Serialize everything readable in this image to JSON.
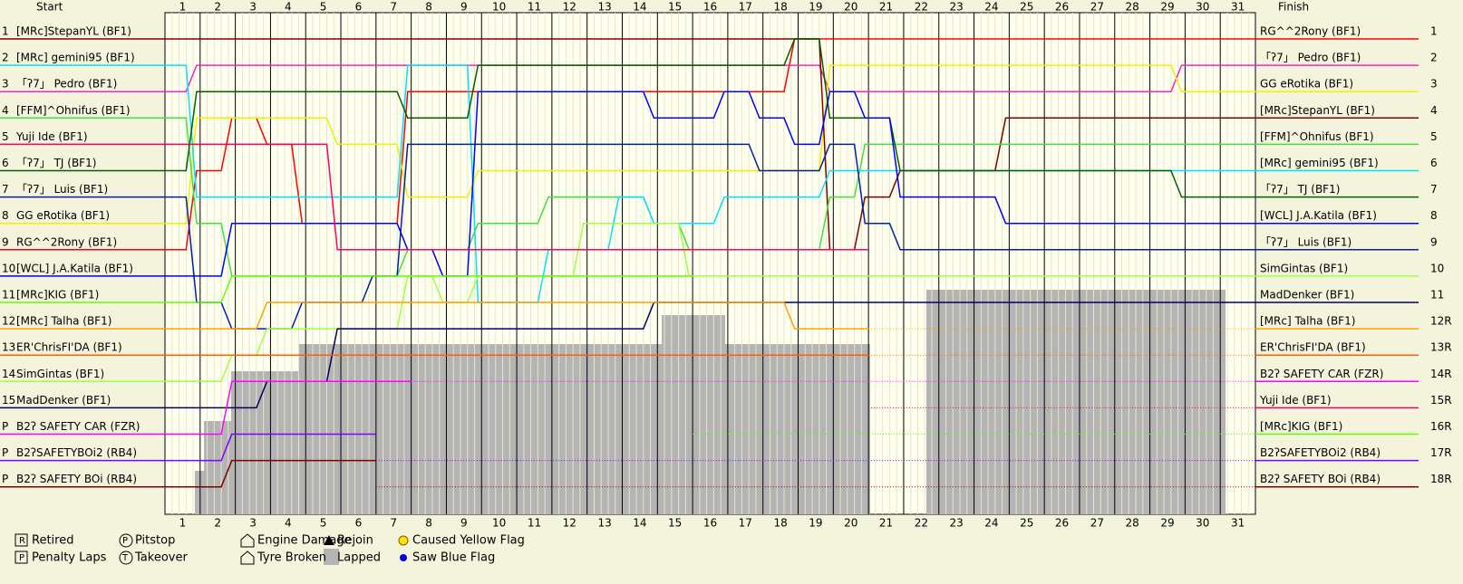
{
  "chart_data": {
    "type": "line",
    "start_title": "Start",
    "finish_title": "Finish",
    "x": [
      1,
      2,
      3,
      4,
      5,
      6,
      7,
      8,
      9,
      10,
      11,
      12,
      13,
      14,
      15,
      16,
      17,
      18,
      19,
      20,
      21,
      22,
      23,
      24,
      25,
      26,
      27,
      28,
      29,
      30,
      31
    ],
    "start_positions": [
      "1",
      "2",
      "3",
      "4",
      "5",
      "6",
      "7",
      "8",
      "9",
      "10",
      "11",
      "12",
      "13",
      "14",
      "15",
      "P",
      "P",
      "P"
    ],
    "start_labels": [
      "[MRc]StepanYL (BF1)",
      "[MRc] gemini95 (BF1)",
      "「ʔ7」 Pedro (BF1)",
      "[FFM]^Ohnifus (BF1)",
      "Yuji Ide (BF1)",
      "「ʔ7」 TJ (BF1)",
      "「ʔ7」 Luis (BF1)",
      "GG eRotika (BF1)",
      "RG^^2Rony (BF1)",
      "[WCL] J.A.Katila (BF1)",
      "[MRc]KIG (BF1)",
      "[MRc] Talha (BF1)",
      "ER'ChrisFI'DA (BF1)",
      "SimGintas (BF1)",
      "MadDenker (BF1)",
      "B2ʔ SAFETY CAR (FZR)",
      "B2ʔSAFETYBOi2 (RB4)",
      "B2ʔ SAFETY BOi (RB4)"
    ],
    "finish_positions": [
      "1",
      "2",
      "3",
      "4",
      "5",
      "6",
      "7",
      "8",
      "9",
      "10",
      "11",
      "12R",
      "13R",
      "14R",
      "15R",
      "16R",
      "17R",
      "18R"
    ],
    "series": [
      {
        "name": "RG^^2Rony (BF1)",
        "color": "#ff0000",
        "values": [
          6,
          4,
          5,
          8,
          8,
          8,
          3,
          3,
          3,
          3,
          3,
          3,
          3,
          3,
          3,
          3,
          3,
          1,
          1,
          1,
          1,
          1,
          1,
          1,
          1,
          1,
          1,
          1,
          1,
          1,
          1
        ]
      },
      {
        "name": "「ʔ7」 Pedro (BF1)",
        "color": "#ff20c0",
        "values": [
          2,
          2,
          2,
          2,
          2,
          2,
          2,
          2,
          2,
          2,
          2,
          2,
          2,
          2,
          2,
          2,
          2,
          2,
          3,
          3,
          3,
          3,
          3,
          3,
          3,
          3,
          3,
          3,
          2,
          2,
          2
        ]
      },
      {
        "name": "GG eRotika (BF1)",
        "color": "#f0f000",
        "values": [
          4,
          4,
          4,
          4,
          5,
          5,
          7,
          7,
          6,
          6,
          6,
          6,
          6,
          6,
          6,
          6,
          6,
          6,
          2,
          2,
          2,
          2,
          2,
          2,
          2,
          2,
          2,
          2,
          3,
          3,
          3
        ]
      },
      {
        "name": "[MRc]StepanYL (BF1)",
        "color": "#800000",
        "values": [
          1,
          1,
          1,
          1,
          1,
          1,
          1,
          1,
          1,
          1,
          1,
          1,
          1,
          1,
          1,
          1,
          1,
          1,
          9,
          7,
          6,
          6,
          6,
          4,
          4,
          4,
          4,
          4,
          4,
          4,
          4
        ]
      },
      {
        "name": "[FFM]^Ohnifus (BF1)",
        "color": "#40e040",
        "values": [
          8,
          10,
          10,
          10,
          10,
          10,
          9,
          9,
          8,
          8,
          7,
          7,
          7,
          8,
          9,
          9,
          9,
          9,
          7,
          5,
          5,
          5,
          5,
          5,
          5,
          5,
          5,
          5,
          5,
          5,
          5
        ]
      },
      {
        "name": "[MRc] gemini95 (BF1)",
        "color": "#00e0ff",
        "values": [
          7,
          7,
          7,
          7,
          7,
          7,
          2,
          2,
          11,
          11,
          9,
          9,
          7,
          8,
          8,
          7,
          7,
          7,
          6,
          6,
          6,
          6,
          6,
          6,
          6,
          6,
          6,
          6,
          6,
          6,
          6
        ]
      },
      {
        "name": "「ʔ7」 TJ (BF1)",
        "color": "#006000",
        "values": [
          3,
          3,
          3,
          3,
          3,
          3,
          4,
          4,
          2,
          2,
          2,
          2,
          2,
          2,
          2,
          2,
          2,
          1,
          4,
          4,
          6,
          6,
          6,
          6,
          6,
          6,
          6,
          6,
          7,
          7,
          7
        ]
      },
      {
        "name": "[WCL] J.A.Katila (BF1)",
        "color": "#0000ff",
        "values": [
          10,
          8,
          8,
          8,
          8,
          8,
          9,
          10,
          3,
          3,
          3,
          3,
          3,
          4,
          4,
          3,
          4,
          5,
          3,
          4,
          7,
          7,
          7,
          8,
          8,
          8,
          8,
          8,
          8,
          8,
          8
        ]
      },
      {
        "name": "「ʔ7」 Luis (BF1)",
        "color": "#0020a0",
        "values": [
          11,
          12,
          12,
          11,
          11,
          10,
          5,
          5,
          5,
          5,
          5,
          5,
          5,
          5,
          5,
          5,
          6,
          6,
          5,
          8,
          9,
          9,
          9,
          9,
          9,
          9,
          9,
          9,
          9,
          9,
          9
        ]
      },
      {
        "name": "SimGintas (BF1)",
        "color": "#a0ff40",
        "values": [
          14,
          13,
          12,
          12,
          12,
          12,
          10,
          11,
          10,
          10,
          10,
          8,
          8,
          8,
          10,
          10,
          10,
          10,
          10,
          10,
          10,
          10,
          10,
          10,
          10,
          10,
          10,
          10,
          10,
          10,
          10
        ]
      },
      {
        "name": "MadDenker (BF1)",
        "color": "#000060",
        "values": [
          15,
          15,
          14,
          14,
          12,
          12,
          12,
          12,
          12,
          12,
          12,
          12,
          12,
          11,
          11,
          11,
          11,
          11,
          11,
          11,
          11,
          11,
          11,
          11,
          11,
          11,
          11,
          11,
          11,
          11,
          11
        ]
      },
      {
        "name": "[MRc] Talha (BF1)",
        "color": "#ffa000",
        "values": [
          12,
          12,
          11,
          11,
          11,
          11,
          11,
          11,
          11,
          11,
          11,
          11,
          11,
          11,
          11,
          11,
          11,
          12,
          12,
          12,
          null,
          null,
          null,
          null,
          null,
          null,
          null,
          null,
          null,
          null,
          null
        ]
      },
      {
        "name": "ER'ChrisFI'DA (BF1)",
        "color": "#ff6000",
        "values": [
          13,
          13,
          13,
          13,
          13,
          13,
          13,
          13,
          13,
          13,
          13,
          13,
          13,
          13,
          13,
          13,
          13,
          13,
          13,
          13,
          null,
          null,
          null,
          null,
          null,
          null,
          null,
          null,
          null,
          null,
          null
        ]
      },
      {
        "name": "B2ʔ SAFETY CAR (FZR)",
        "color": "#ff00ff",
        "values": [
          16,
          14,
          14,
          14,
          14,
          14,
          14,
          null,
          null,
          null,
          null,
          null,
          null,
          null,
          null,
          null,
          null,
          null,
          null,
          null,
          null,
          null,
          null,
          null,
          null,
          null,
          null,
          null,
          null,
          null,
          null
        ]
      },
      {
        "name": "Yuji Ide (BF1)",
        "color": "#ff0060",
        "values": [
          5,
          5,
          5,
          5,
          9,
          9,
          9,
          9,
          9,
          9,
          9,
          9,
          9,
          9,
          9,
          9,
          9,
          9,
          9,
          9,
          null,
          null,
          null,
          null,
          null,
          null,
          null,
          null,
          null,
          null,
          null
        ]
      },
      {
        "name": "[MRc]KIG (BF1)",
        "color": "#60ff00",
        "values": [
          11,
          10,
          10,
          10,
          10,
          10,
          10,
          10,
          10,
          10,
          10,
          10,
          10,
          10,
          10,
          null,
          null,
          null,
          null,
          null,
          null,
          null,
          null,
          null,
          null,
          null,
          null,
          null,
          null,
          null,
          null
        ]
      },
      {
        "name": "B2ʔSAFETYBOi2 (RB4)",
        "color": "#8000ff",
        "values": [
          17,
          16,
          16,
          16,
          16,
          16,
          null,
          null,
          null,
          null,
          null,
          null,
          null,
          null,
          null,
          null,
          null,
          null,
          null,
          null,
          null,
          null,
          null,
          null,
          null,
          null,
          null,
          null,
          null,
          null,
          null
        ]
      },
      {
        "name": "B2ʔ SAFETY BOi (RB4)",
        "color": "#800000",
        "values": [
          18,
          17,
          17,
          17,
          17,
          17,
          null,
          null,
          null,
          null,
          null,
          null,
          null,
          null,
          null,
          null,
          null,
          null,
          null,
          null,
          null,
          null,
          null,
          null,
          null,
          null,
          null,
          null,
          null,
          null,
          null
        ]
      }
    ],
    "legend": [
      "Retired",
      "Penalty Laps",
      "Pitstop",
      "Takeover",
      "Engine Damage",
      "Tyre Broken",
      "Rejoin",
      "Lapped",
      "Caused Yellow Flag",
      "Saw Blue Flag"
    ]
  }
}
